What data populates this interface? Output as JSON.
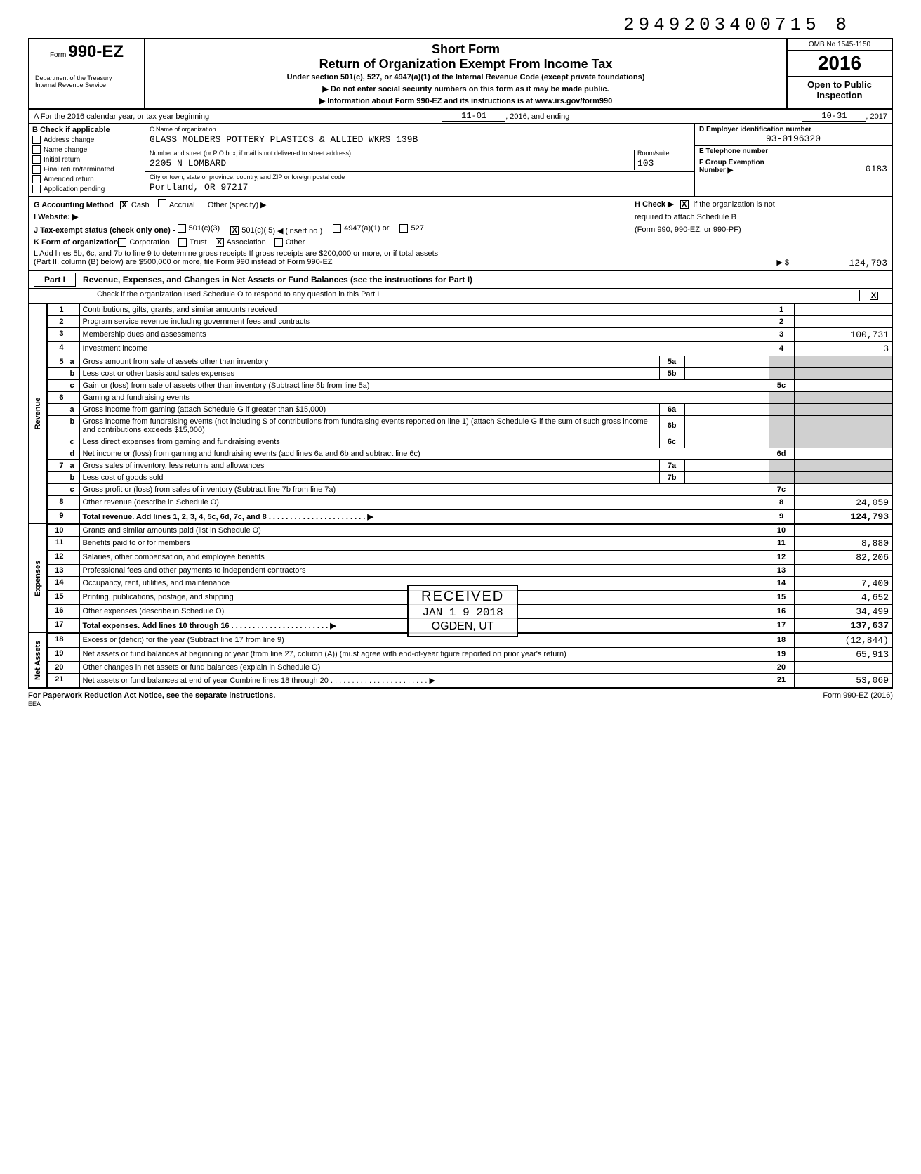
{
  "top_number": "2949203400715 8",
  "form": {
    "label": "Form",
    "number": "990-EZ",
    "dept1": "Department of the Treasury",
    "dept2": "Internal Revenue Service",
    "title1": "Short Form",
    "title2": "Return of Organization Exempt From Income Tax",
    "under": "Under section 501(c), 527, or 4947(a)(1) of the Internal Revenue Code (except private foundations)",
    "arrow1": "▶  Do not enter social security numbers on this form as it may be made public.",
    "arrow2": "▶  Information about Form 990-EZ and its instructions is at www.irs.gov/form990",
    "omb": "OMB No 1545-1150",
    "year": "2016",
    "open": "Open to Public Inspection"
  },
  "sectionA": {
    "line": "A  For the 2016 calendar year, or tax year beginning",
    "begin": "11-01",
    "mid": ", 2016, and ending",
    "end": "10-31",
    "end2": ", 2017"
  },
  "sectionB": {
    "header": "B  Check if applicable",
    "items": [
      "Address change",
      "Name change",
      "Initial return",
      "Final return/terminated",
      "Amended return",
      "Application pending"
    ]
  },
  "sectionC": {
    "name_label": "C   Name of organization",
    "name": "GLASS MOLDERS POTTERY PLASTICS & ALLIED WKRS 139B",
    "addr_label": "Number and street (or P O  box, if mail is not delivered to street address)",
    "addr": "2205 N LOMBARD",
    "room_label": "Room/suite",
    "room": "103",
    "city_label": "City or town, state or province, country, and ZIP or foreign postal code",
    "city": "Portland, OR 97217"
  },
  "sectionD": {
    "label": "D  Employer identification number",
    "val": "93-0196320"
  },
  "sectionE": {
    "label": "E   Telephone number",
    "val": ""
  },
  "sectionF": {
    "label": "F   Group Exemption",
    "label2": "Number  ▶",
    "val": "0183"
  },
  "rowG": {
    "label": "G  Accounting Method",
    "cash": "Cash",
    "cash_checked": true,
    "accrual": "Accrual",
    "other": "Other (specify) ▶"
  },
  "rowH": {
    "label": "H  Check ▶",
    "checked": true,
    "txt1": "if the organization is not",
    "txt2": "required to attach Schedule B",
    "txt3": "(Form 990, 990-EZ, or 990-PF)"
  },
  "rowI": {
    "label": "I    Website:   ▶"
  },
  "rowJ": {
    "label": "J   Tax-exempt status (check only one) -",
    "opt1": "501(c)(3)",
    "opt2": "501(c)( 5",
    "opt2_checked": true,
    "opt2_suffix": ")  ◀ (insert no )",
    "opt3": "4947(a)(1) or",
    "opt4": "527"
  },
  "rowK": {
    "label": "K  Form of organization",
    "corp": "Corporation",
    "trust": "Trust",
    "assoc": "Association",
    "assoc_checked": true,
    "other": "Other"
  },
  "rowL": {
    "line1": "L  Add lines 5b, 6c, and 7b to line 9 to determine gross receipts  If gross receipts are $200,000 or more, or if total assets",
    "line2": "(Part II, column (B) below) are $500,000 or more, file Form 990 instead of Form 990-EZ",
    "arrow": "▶  $",
    "amt": "124,793"
  },
  "part1": {
    "part_label": "Part I",
    "title": "Revenue, Expenses, and Changes in Net Assets or Fund Balances (see the instructions for Part I)",
    "sched_o_txt": "Check if the organization used Schedule O to respond to any question in this Part I",
    "sched_o_checked": true
  },
  "side_labels": {
    "revenue": "Revenue",
    "expenses": "Expenses",
    "netassets": "Net Assets"
  },
  "rows": [
    {
      "n": "1",
      "d": "Contributions, gifts, grants, and similar amounts received",
      "rn": "1",
      "ra": ""
    },
    {
      "n": "2",
      "d": "Program service revenue including government fees and contracts",
      "rn": "2",
      "ra": ""
    },
    {
      "n": "3",
      "d": "Membership dues and assessments",
      "rn": "3",
      "ra": "100,731"
    },
    {
      "n": "4",
      "d": "Investment income",
      "rn": "4",
      "ra": "3"
    },
    {
      "n": "5a",
      "d": "Gross amount from sale of assets other than inventory",
      "mn": "5a",
      "ma": ""
    },
    {
      "n": "b",
      "d": "Less  cost or other basis and sales expenses",
      "mn": "5b",
      "ma": ""
    },
    {
      "n": "c",
      "d": "Gain or (loss) from sale of assets other than inventory (Subtract line 5b from line 5a)",
      "rn": "5c",
      "ra": ""
    },
    {
      "n": "6",
      "d": "Gaming and fundraising events"
    },
    {
      "n": "a",
      "d": "Gross income from gaming (attach Schedule G if greater than $15,000)",
      "mn": "6a",
      "ma": ""
    },
    {
      "n": "b",
      "d": "Gross income from fundraising events (not including        $                           of contributions from fundraising events reported on line 1) (attach Schedule G if the sum of such gross income and contributions exceeds $15,000)",
      "mn": "6b",
      "ma": ""
    },
    {
      "n": "c",
      "d": "Less  direct expenses from gaming and fundraising events",
      "mn": "6c",
      "ma": ""
    },
    {
      "n": "d",
      "d": "Net income or (loss) from gaming and fundraising events (add lines 6a and 6b and subtract line 6c)",
      "rn": "6d",
      "ra": ""
    },
    {
      "n": "7a",
      "d": "Gross sales of inventory, less returns and allowances",
      "mn": "7a",
      "ma": ""
    },
    {
      "n": "b",
      "d": "Less  cost of goods sold",
      "mn": "7b",
      "ma": ""
    },
    {
      "n": "c",
      "d": "Gross profit or (loss) from sales of inventory (Subtract line 7b from line 7a)",
      "rn": "7c",
      "ra": ""
    },
    {
      "n": "8",
      "d": "Other revenue (describe in Schedule O)",
      "rn": "8",
      "ra": "24,059"
    },
    {
      "n": "9",
      "d": "Total revenue.  Add lines 1, 2, 3, 4, 5c, 6d, 7c, and 8",
      "rn": "9",
      "ra": "124,793",
      "bold": true,
      "arrow": true,
      "thick": true
    },
    {
      "n": "10",
      "d": "Grants and similar amounts paid (list in Schedule O)",
      "rn": "10",
      "ra": ""
    },
    {
      "n": "11",
      "d": "Benefits paid to or for members",
      "rn": "11",
      "ra": "8,880"
    },
    {
      "n": "12",
      "d": "Salaries, other compensation, and employee benefits",
      "rn": "12",
      "ra": "82,206"
    },
    {
      "n": "13",
      "d": "Professional fees and other payments to independent contractors",
      "rn": "13",
      "ra": ""
    },
    {
      "n": "14",
      "d": "Occupancy, rent, utilities, and maintenance",
      "rn": "14",
      "ra": "7,400"
    },
    {
      "n": "15",
      "d": "Printing, publications, postage, and shipping",
      "rn": "15",
      "ra": "4,652"
    },
    {
      "n": "16",
      "d": "Other expenses (describe in Schedule O)",
      "rn": "16",
      "ra": "34,499"
    },
    {
      "n": "17",
      "d": "Total expenses.  Add lines 10 through 16",
      "rn": "17",
      "ra": "137,637",
      "bold": true,
      "arrow": true,
      "thick": true
    },
    {
      "n": "18",
      "d": "Excess or (deficit) for the year (Subtract line 17 from line 9)",
      "rn": "18",
      "ra": "(12,844)"
    },
    {
      "n": "19",
      "d": "Net assets or fund balances at beginning of year (from line 27, column (A)) (must agree with end-of-year figure reported on prior year's return)",
      "rn": "19",
      "ra": "65,913"
    },
    {
      "n": "20",
      "d": "Other changes in net assets or fund balances (explain in Schedule O)",
      "rn": "20",
      "ra": ""
    },
    {
      "n": "21",
      "d": "Net assets or fund balances at end of year  Combine lines 18 through 20",
      "rn": "21",
      "ra": "53,069",
      "arrow": true,
      "thick": true
    }
  ],
  "stamp": {
    "r1": "RECEIVED",
    "r2": "JAN 1 9 2018",
    "r3": "OGDEN, UT"
  },
  "footer": {
    "left": "For Paperwork Reduction Act Notice, see the separate instructions.",
    "eea": "EEA",
    "right": "Form 990-EZ (2016)"
  }
}
